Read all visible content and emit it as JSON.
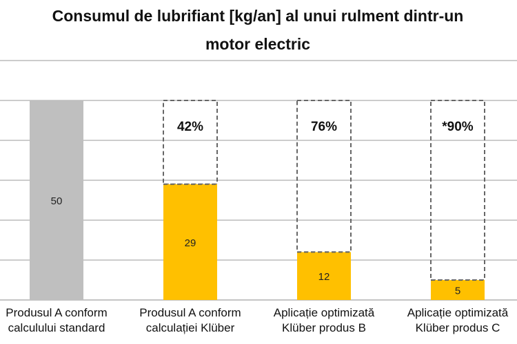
{
  "chart_data": {
    "type": "bar",
    "title_lines": [
      "Consumul de lubrifiant [kg/an] al unui rulment dintr-un",
      "motor electric"
    ],
    "categories": [
      [
        "Produsul A conform",
        "calculului standard"
      ],
      [
        "Produsul A conform",
        "calculației Klüber"
      ],
      [
        "Aplicație optimizată",
        "Klüber produs B"
      ],
      [
        "Aplicație optimizată",
        "Klüber produs C"
      ]
    ],
    "values": [
      50,
      29,
      12,
      5
    ],
    "value_labels": [
      "50",
      "29",
      "12",
      "5"
    ],
    "savings_labels": [
      "",
      "42%",
      "76%",
      "*90%"
    ],
    "reference_value": 50,
    "ylim": [
      0,
      60
    ],
    "grid": true,
    "legend": "none",
    "colors": {
      "baseline_bar": "#bfbfbf",
      "bar": "#ffc000",
      "grid": "#9a9a9a",
      "dashed_outline": "#666666"
    }
  }
}
